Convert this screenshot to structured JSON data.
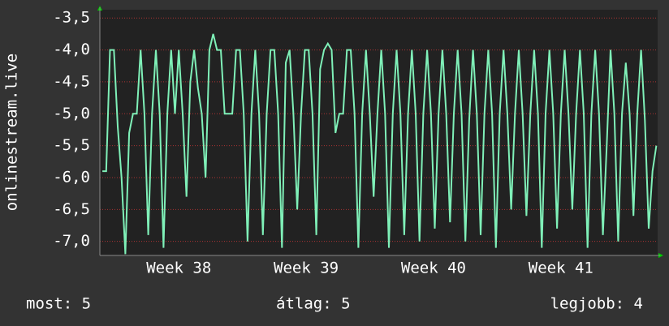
{
  "chart_data": {
    "type": "line",
    "y_label": "onlinestream.live",
    "series": [
      {
        "name": "onlinestream.live",
        "color": "#7ff0b8",
        "x": [
          37.9,
          37.93,
          37.96,
          37.99,
          38.02,
          38.05,
          38.08,
          38.11,
          38.14,
          38.17,
          38.2,
          38.23,
          38.26,
          38.29,
          38.32,
          38.35,
          38.38,
          38.41,
          38.44,
          38.47,
          38.5,
          38.53,
          38.56,
          38.59,
          38.62,
          38.65,
          38.68,
          38.71,
          38.74,
          38.77,
          38.8,
          38.83,
          38.86,
          38.89,
          38.92,
          38.95,
          38.98,
          39.01,
          39.04,
          39.07,
          39.1,
          39.13,
          39.16,
          39.19,
          39.22,
          39.25,
          39.28,
          39.31,
          39.34,
          39.37,
          39.4,
          39.43,
          39.46,
          39.49,
          39.52,
          39.55,
          39.58,
          39.61,
          39.64,
          39.67,
          39.7,
          39.73,
          39.76,
          39.79,
          39.82,
          39.85,
          39.88,
          39.91,
          39.94,
          39.97,
          40.0,
          40.03,
          40.06,
          40.09,
          40.12,
          40.15,
          40.18,
          40.21,
          40.24,
          40.27,
          40.3,
          40.33,
          40.36,
          40.39,
          40.42,
          40.45,
          40.48,
          40.51,
          40.54,
          40.57,
          40.6,
          40.63,
          40.66,
          40.69,
          40.72,
          40.75,
          40.78,
          40.81,
          40.84,
          40.87,
          40.9,
          40.93,
          40.96,
          40.99,
          41.02,
          41.05,
          41.08,
          41.11,
          41.14,
          41.17,
          41.2,
          41.23,
          41.26,
          41.29,
          41.32,
          41.35,
          41.38,
          41.41,
          41.44,
          41.47,
          41.5,
          41.53,
          41.56,
          41.59,
          41.62,
          41.65,
          41.68,
          41.71,
          41.74,
          41.77,
          41.8,
          41.83,
          41.86,
          41.89,
          41.92,
          41.95,
          41.98,
          42.01,
          42.04,
          42.07,
          42.1,
          42.13,
          42.16,
          42.19,
          42.22,
          42.25
        ],
        "values": [
          -5.9,
          -5.9,
          -4,
          -4,
          -5.2,
          -6,
          -7.2,
          -5.3,
          -5,
          -5,
          -4,
          -5,
          -6.9,
          -5,
          -4,
          -5,
          -7.1,
          -5,
          -4,
          -5,
          -4,
          -5,
          -6.3,
          -4.5,
          -4,
          -4.6,
          -5,
          -6,
          -4,
          -3.75,
          -4,
          -4,
          -5,
          -5,
          -5,
          -4,
          -4,
          -5,
          -7,
          -5,
          -4,
          -5,
          -6.9,
          -5,
          -4,
          -4,
          -5,
          -7.1,
          -4.2,
          -4,
          -5,
          -6.5,
          -5,
          -4,
          -4,
          -5,
          -6.9,
          -4.3,
          -4,
          -3.9,
          -4,
          -5.3,
          -5,
          -5,
          -4,
          -4,
          -5,
          -7.1,
          -5,
          -4,
          -5,
          -6.3,
          -5,
          -4,
          -5,
          -7.1,
          -5,
          -4,
          -5,
          -6.9,
          -5,
          -4,
          -5,
          -7,
          -5,
          -4,
          -5,
          -6.8,
          -5,
          -4,
          -5,
          -6.7,
          -5,
          -4,
          -5,
          -7,
          -5.1,
          -4,
          -5,
          -6.9,
          -5,
          -4,
          -5,
          -7.1,
          -5,
          -4,
          -5,
          -6.5,
          -5,
          -4,
          -5,
          -6.6,
          -5,
          -4,
          -5,
          -7.1,
          -5,
          -4,
          -5,
          -6.8,
          -5,
          -4,
          -5,
          -6.5,
          -5,
          -4,
          -5,
          -7.1,
          -5,
          -4,
          -5,
          -6.9,
          -5.5,
          -4,
          -5,
          -7,
          -5,
          -4.2,
          -5,
          -6.6,
          -5,
          -4,
          -5.1,
          -6.8,
          -5.9,
          -5.5
        ]
      }
    ],
    "xlim": [
      37.88,
      42.26
    ],
    "xticks": [
      {
        "value": 38.5,
        "label": "Week 38"
      },
      {
        "value": 39.5,
        "label": "Week 39"
      },
      {
        "value": 40.5,
        "label": "Week 40"
      },
      {
        "value": 41.5,
        "label": "Week 41"
      }
    ],
    "ylim": [
      -7.22,
      -3.37
    ],
    "yticks": [
      {
        "value": -3.5,
        "label": "-3,5"
      },
      {
        "value": -4,
        "label": "-4,0"
      },
      {
        "value": -4.5,
        "label": "-4,5"
      },
      {
        "value": -5,
        "label": "-5,0"
      },
      {
        "value": -5.5,
        "label": "-5,5"
      },
      {
        "value": -6,
        "label": "-6,0"
      },
      {
        "value": -6.5,
        "label": "-6,5"
      },
      {
        "value": -7,
        "label": "-7,0"
      }
    ],
    "grid": true,
    "footer": [
      "most: 5",
      "átlag: 5",
      "legjobb: 4"
    ]
  }
}
